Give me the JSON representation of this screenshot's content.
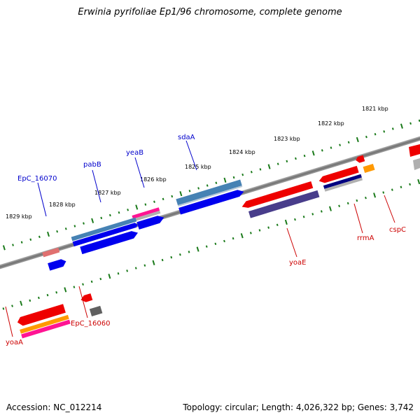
{
  "title": "Erwinia pyrifoliae Ep1/96 chromosome, complete genome",
  "footer": {
    "accession": "Accession: NC_012214",
    "summary": "Topology: circular; Length: 4,026,322 bp; Genes: 3,742"
  },
  "ruler_labels": [
    "1821 kbp",
    "1822 kbp",
    "1823 kbp",
    "1824 kbp",
    "1825 kbp",
    "1826 kbp",
    "1827 kbp",
    "1828 kbp",
    "1829 kbp"
  ],
  "gene_labels": {
    "top": [
      "sdaA",
      "yeaB",
      "pabB",
      "EpC_16070"
    ],
    "bottom": [
      "cspC",
      "rrmA",
      "yoaE",
      "EpC_16060",
      "yoaA"
    ]
  },
  "colors": {
    "top_label": "#0000cc",
    "bottom_label": "#cc0000",
    "ruler_ticks": "#1a7a1a",
    "backbone": "#808080",
    "gene_blue": "#0000ee",
    "gene_steelblue": "#4682b4",
    "gene_red": "#ee0000",
    "gene_darkslate": "#483d8b",
    "gene_navy": "#000080",
    "gene_orange": "#ff9900",
    "gene_pink": "#ff1493",
    "gene_gray": "#606060",
    "gene_lightgray": "#b0b0b0",
    "gene_salmon": "#e07070"
  }
}
